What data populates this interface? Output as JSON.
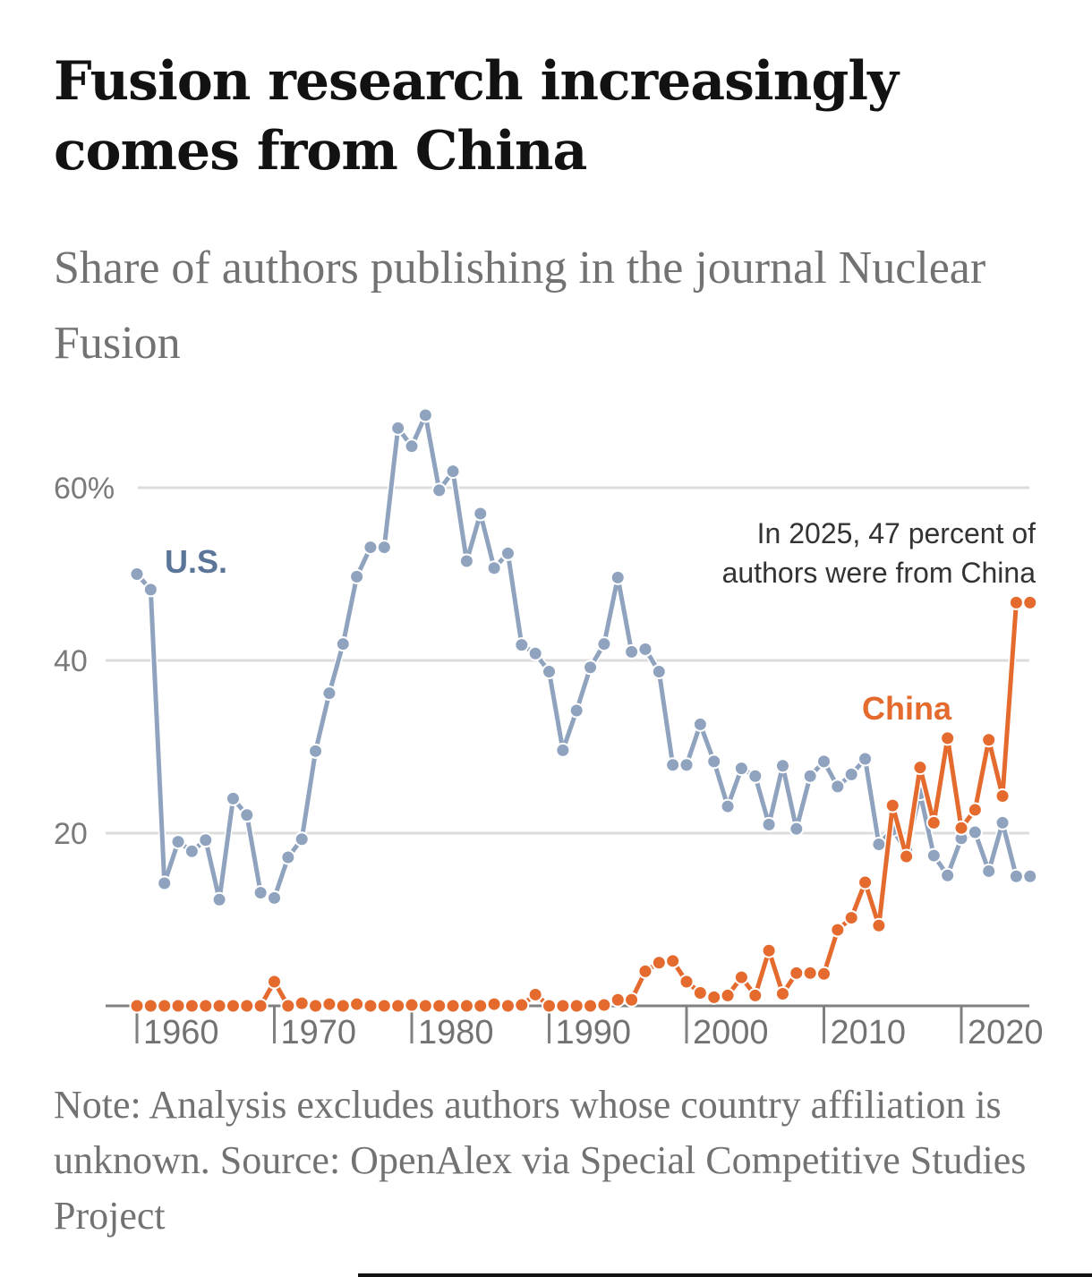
{
  "header": {
    "title": "Fusion research increasingly comes from China",
    "subtitle": "Share of authors publishing in the journal Nuclear Fusion"
  },
  "footer": {
    "note": "Note: Analysis excludes authors whose country affiliation is unknown. Source: OpenAlex via Special Competitive Studies Project"
  },
  "colors": {
    "us": "#8fa3bf",
    "us_label": "#5a7597",
    "china": "#e46a2e",
    "gridline": "#dcdcdc",
    "axis": "#808080"
  },
  "chart_data": {
    "type": "line",
    "title": "Fusion research increasingly comes from China",
    "subtitle": "Share of authors publishing in the journal Nuclear Fusion",
    "xlabel": "",
    "ylabel": "",
    "x_range": [
      1960,
      2025
    ],
    "ylim": [
      0,
      70
    ],
    "y_ticks": [
      {
        "value": 20,
        "label": "20"
      },
      {
        "value": 40,
        "label": "40"
      },
      {
        "value": 60,
        "label": "60%"
      }
    ],
    "x_ticks": [
      {
        "value": 1960,
        "label": "1960"
      },
      {
        "value": 1970,
        "label": "1970"
      },
      {
        "value": 1980,
        "label": "1980"
      },
      {
        "value": 1990,
        "label": "1990"
      },
      {
        "value": 2000,
        "label": "2000"
      },
      {
        "value": 2010,
        "label": "2010"
      },
      {
        "value": 2020,
        "label": "2020"
      }
    ],
    "grid": true,
    "legend": "inline labels",
    "x": [
      1960,
      1961,
      1962,
      1963,
      1964,
      1965,
      1966,
      1967,
      1968,
      1969,
      1970,
      1971,
      1972,
      1973,
      1974,
      1975,
      1976,
      1977,
      1978,
      1979,
      1980,
      1981,
      1982,
      1983,
      1984,
      1985,
      1986,
      1987,
      1988,
      1989,
      1990,
      1991,
      1992,
      1993,
      1994,
      1995,
      1996,
      1997,
      1998,
      1999,
      2000,
      2001,
      2002,
      2003,
      2004,
      2005,
      2006,
      2007,
      2008,
      2009,
      2010,
      2011,
      2012,
      2013,
      2014,
      2015,
      2016,
      2017,
      2018,
      2019,
      2020,
      2021,
      2022,
      2023,
      2024,
      2025
    ],
    "series": [
      {
        "name": "U.S.",
        "label": "U.S.",
        "values": [
          50.0,
          48.2,
          14.2,
          19.0,
          17.9,
          19.2,
          12.3,
          24.0,
          22.1,
          13.1,
          12.5,
          17.2,
          19.3,
          29.5,
          36.2,
          41.9,
          49.7,
          53.1,
          53.1,
          66.9,
          64.8,
          68.4,
          59.7,
          61.9,
          51.5,
          57.0,
          50.7,
          52.4,
          41.8,
          40.8,
          38.7,
          29.6,
          34.2,
          39.2,
          41.9,
          49.6,
          41.0,
          41.3,
          38.7,
          27.9,
          27.9,
          32.6,
          28.3,
          23.1,
          27.5,
          26.6,
          21.0,
          27.8,
          20.5,
          26.6,
          28.3,
          25.4,
          26.8,
          28.6,
          18.7,
          20.4,
          18.0,
          24.6,
          17.4,
          15.1,
          19.4,
          20.1,
          15.6,
          21.2,
          15.0,
          15.0
        ]
      },
      {
        "name": "China",
        "label": "China",
        "values": [
          0,
          0,
          0,
          0,
          0,
          0,
          0,
          0,
          0,
          0,
          2.8,
          0,
          0.3,
          0,
          0.2,
          0,
          0.2,
          0,
          0,
          0,
          0.1,
          0,
          0,
          0,
          0,
          0,
          0.2,
          0,
          0.1,
          1.3,
          0,
          0,
          0,
          0,
          0.1,
          0.7,
          0.7,
          4.0,
          5.0,
          5.2,
          2.8,
          1.5,
          1.0,
          1.2,
          3.3,
          1.2,
          6.4,
          1.4,
          3.8,
          3.8,
          3.7,
          8.8,
          10.2,
          14.3,
          9.3,
          23.2,
          17.3,
          27.6,
          21.2,
          31.0,
          20.6,
          22.7,
          30.8,
          24.3,
          46.7,
          46.7
        ]
      }
    ],
    "annotations": [
      {
        "text_line1": "In 2025, 47 percent of",
        "text_line2": "authors were from China",
        "target_series": "China",
        "target_x": 2025,
        "target_value": 47
      }
    ]
  }
}
